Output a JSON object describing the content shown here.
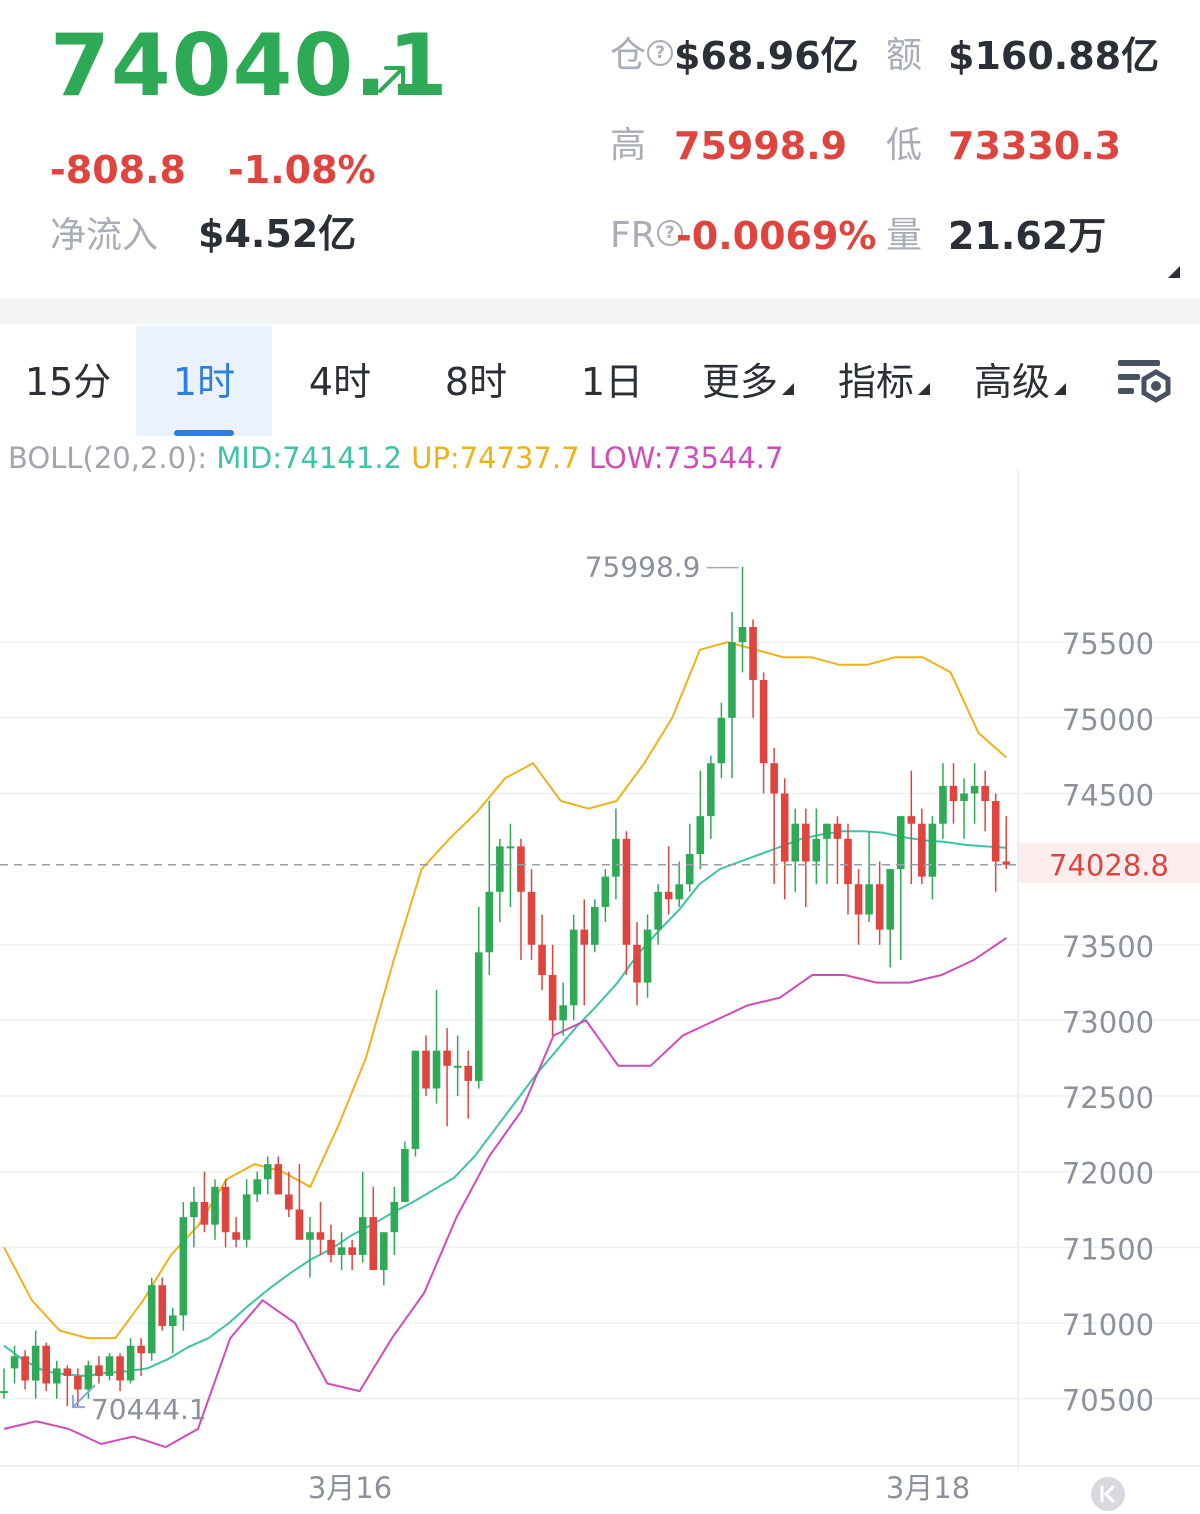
{
  "header": {
    "last_price": "74040.1",
    "change": "-808.8",
    "change_pct": "-1.08%",
    "net_inflow_label": "净流入",
    "net_inflow_value": "$4.52亿",
    "open_interest_label": "仓",
    "open_interest_value": "$68.96亿",
    "turnover_label": "额",
    "turnover_value": "$160.88亿",
    "high_label": "高",
    "high_value": "75998.9",
    "low_label": "低",
    "low_value": "73330.3",
    "funding_rate_label": "FR",
    "funding_rate_value": "-0.0069%",
    "volume_label": "量",
    "volume_value": "21.62万"
  },
  "tabs": [
    {
      "label": "15分"
    },
    {
      "label": "1时",
      "active": true
    },
    {
      "label": "4时"
    },
    {
      "label": "8时"
    },
    {
      "label": "1日"
    },
    {
      "label": "更多"
    },
    {
      "label": "指标"
    },
    {
      "label": "高级"
    }
  ],
  "indicator": {
    "name": "BOLL(20,2.0):",
    "mid": "MID:74141.2",
    "up": "UP:74737.7",
    "low": "LOW:73544.7"
  },
  "colors": {
    "up": "#2eaa57",
    "down": "#e0443f",
    "mid": "#3cc4a7",
    "upper": "#f0b21b",
    "lower": "#d14cb6",
    "active_tab": "#2f7de1"
  },
  "icons": {
    "trend": "arrow-up-right-icon",
    "settings": "chart-settings-icon",
    "collapse": "corner-triangle-icon",
    "jump_latest": "jump-to-start-icon"
  },
  "chart_data": {
    "type": "candlestick",
    "interval": "1时",
    "y_ticks": [
      75500,
      75000,
      74500,
      73500,
      73000,
      72500,
      72000,
      71500,
      71000,
      70500
    ],
    "y_range": [
      70000,
      76100
    ],
    "x_ticks": [
      "3月16",
      "3月18"
    ],
    "current_price": "74028.8",
    "high_marker": "75998.9",
    "low_marker": "70444.1",
    "candles": [
      [
        70550,
        70700,
        70500,
        70550
      ],
      [
        70700,
        70850,
        70600,
        70780
      ],
      [
        70780,
        70820,
        70560,
        70620
      ],
      [
        70620,
        70950,
        70500,
        70850
      ],
      [
        70850,
        70870,
        70550,
        70600
      ],
      [
        70600,
        70750,
        70500,
        70700
      ],
      [
        70700,
        70720,
        70450,
        70650
      ],
      [
        70650,
        70700,
        70450,
        70560
      ],
      [
        70560,
        70750,
        70500,
        70720
      ],
      [
        70720,
        70780,
        70600,
        70650
      ],
      [
        70650,
        70800,
        70620,
        70780
      ],
      [
        70780,
        70800,
        70550,
        70620
      ],
      [
        70620,
        70900,
        70600,
        70850
      ],
      [
        70850,
        70900,
        70650,
        70800
      ],
      [
        70800,
        71300,
        70750,
        71250
      ],
      [
        71250,
        71300,
        70950,
        70980
      ],
      [
        70980,
        71100,
        70800,
        71050
      ],
      [
        71050,
        71800,
        70950,
        71700
      ],
      [
        71700,
        71900,
        71500,
        71800
      ],
      [
        71800,
        72000,
        71600,
        71650
      ],
      [
        71650,
        71950,
        71550,
        71900
      ],
      [
        71900,
        71950,
        71500,
        71600
      ],
      [
        71600,
        71700,
        71500,
        71550
      ],
      [
        71550,
        71950,
        71500,
        71850
      ],
      [
        71850,
        72000,
        71800,
        71950
      ],
      [
        71950,
        72100,
        71850,
        72050
      ],
      [
        72050,
        72100,
        71900,
        71850
      ],
      [
        71850,
        72000,
        71700,
        71750
      ],
      [
        71750,
        72050,
        71550,
        71550
      ],
      [
        71550,
        71700,
        71300,
        71600
      ],
      [
        71600,
        71800,
        71450,
        71550
      ],
      [
        71550,
        71650,
        71400,
        71450
      ],
      [
        71450,
        71600,
        71350,
        71500
      ],
      [
        71500,
        71550,
        71350,
        71450
      ],
      [
        71450,
        72000,
        71400,
        71700
      ],
      [
        71700,
        71900,
        71350,
        71350
      ],
      [
        71350,
        71600,
        71250,
        71600
      ],
      [
        71600,
        71900,
        71450,
        71800
      ],
      [
        71800,
        72200,
        71800,
        72150
      ],
      [
        72150,
        72800,
        72100,
        72800
      ],
      [
        72800,
        72900,
        72500,
        72550
      ],
      [
        72550,
        73200,
        72450,
        72800
      ],
      [
        72800,
        72950,
        72300,
        72700
      ],
      [
        72700,
        72900,
        72500,
        72700
      ],
      [
        72700,
        72800,
        72350,
        72600
      ],
      [
        72600,
        73750,
        72550,
        73450
      ],
      [
        73450,
        74450,
        73300,
        73850
      ],
      [
        73850,
        74200,
        73650,
        74150
      ],
      [
        74150,
        74300,
        73750,
        74150
      ],
      [
        74150,
        74200,
        73400,
        73850
      ],
      [
        73850,
        74000,
        73400,
        73500
      ],
      [
        73500,
        73700,
        73200,
        73300
      ],
      [
        73300,
        73500,
        72900,
        73000
      ],
      [
        73000,
        73250,
        72900,
        73100
      ],
      [
        73100,
        73700,
        73000,
        73600
      ],
      [
        73600,
        73800,
        73100,
        73500
      ],
      [
        73500,
        73800,
        73450,
        73750
      ],
      [
        73750,
        74000,
        73650,
        73950
      ],
      [
        73950,
        74400,
        73800,
        74200
      ],
      [
        74200,
        74250,
        73300,
        73500
      ],
      [
        73500,
        73650,
        73100,
        73250
      ],
      [
        73250,
        73700,
        73150,
        73600
      ],
      [
        73600,
        73900,
        73500,
        73850
      ],
      [
        73850,
        74150,
        73700,
        73800
      ],
      [
        73800,
        74050,
        73750,
        73900
      ],
      [
        73900,
        74300,
        73850,
        74100
      ],
      [
        74100,
        74650,
        74000,
        74350
      ],
      [
        74350,
        74750,
        74200,
        74700
      ],
      [
        74700,
        75100,
        74600,
        75000
      ],
      [
        75000,
        75700,
        74600,
        75500
      ],
      [
        75500,
        75999,
        75300,
        75600
      ],
      [
        75600,
        75650,
        75000,
        75250
      ],
      [
        75250,
        75300,
        74500,
        74700
      ],
      [
        74700,
        74800,
        73900,
        74500
      ],
      [
        74500,
        74600,
        73800,
        74050
      ],
      [
        74050,
        74400,
        73850,
        74300
      ],
      [
        74300,
        74400,
        73750,
        74050
      ],
      [
        74050,
        74400,
        73900,
        74200
      ],
      [
        74200,
        74300,
        73900,
        74300
      ],
      [
        74300,
        74350,
        73900,
        74200
      ],
      [
        74200,
        74300,
        73700,
        73900
      ],
      [
        73900,
        74000,
        73500,
        73700
      ],
      [
        73700,
        74250,
        73650,
        73900
      ],
      [
        73900,
        74050,
        73500,
        73600
      ],
      [
        73600,
        74000,
        73350,
        74000
      ],
      [
        74000,
        74350,
        73400,
        74350
      ],
      [
        74350,
        74650,
        73900,
        74300
      ],
      [
        74300,
        74400,
        73900,
        73950
      ],
      [
        73950,
        74350,
        73800,
        74300
      ],
      [
        74300,
        74700,
        74200,
        74550
      ],
      [
        74550,
        74700,
        74300,
        74450
      ],
      [
        74450,
        74600,
        74200,
        74500
      ],
      [
        74500,
        74700,
        74300,
        74550
      ],
      [
        74550,
        74650,
        74250,
        74450
      ],
      [
        74450,
        74500,
        73850,
        74050
      ],
      [
        74050,
        74350,
        74000,
        74028.8
      ]
    ],
    "boll_mid": [
      70850,
      70750,
      70680,
      70660,
      70650,
      70670,
      70680,
      70700,
      70760,
      70840,
      70900,
      71000,
      71120,
      71230,
      71330,
      71420,
      71490,
      71580,
      71650,
      71730,
      71800,
      71880,
      71960,
      72100,
      72280,
      72460,
      72640,
      72800,
      72960,
      73100,
      73250,
      73440,
      73590,
      73730,
      73900,
      74000,
      74050,
      74100,
      74150,
      74200,
      74230,
      74250,
      74250,
      74240,
      74210,
      74190,
      74180,
      74160,
      74150,
      74141.2
    ],
    "boll_upper": [
      71500,
      71150,
      70950,
      70900,
      70900,
      71150,
      71450,
      71650,
      71950,
      72050,
      72000,
      71900,
      72300,
      72750,
      73400,
      74000,
      74200,
      74380,
      74600,
      74700,
      74450,
      74400,
      74450,
      74700,
      75000,
      75450,
      75500,
      75450,
      75400,
      75400,
      75350,
      75350,
      75400,
      75400,
      75300,
      74900,
      74737.7
    ],
    "boll_lower": [
      70300,
      70350,
      70300,
      70200,
      70250,
      70180,
      70300,
      70900,
      71150,
      71000,
      70600,
      70550,
      70900,
      71200,
      71700,
      72100,
      72400,
      72900,
      73000,
      72700,
      72700,
      72900,
      73000,
      73100,
      73150,
      73300,
      73300,
      73250,
      73250,
      73300,
      73400,
      73544.7
    ]
  }
}
